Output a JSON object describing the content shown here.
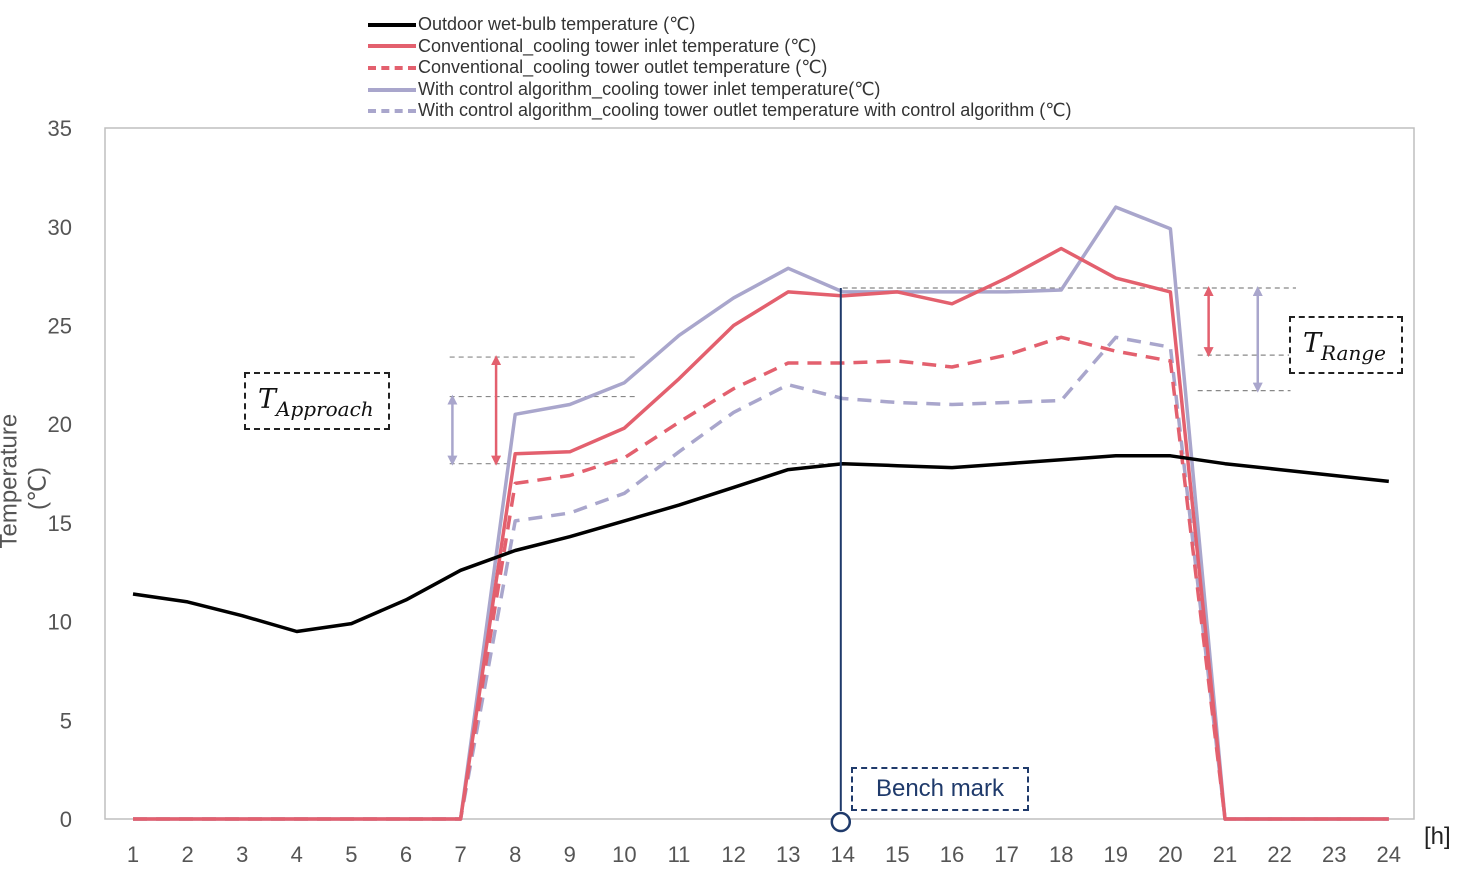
{
  "chart_data": {
    "type": "line",
    "title": "",
    "xlabel": "",
    "x_unit": "[h]",
    "ylabel": "Temperature (℃)",
    "xlim": [
      1,
      24
    ],
    "ylim": [
      0,
      35
    ],
    "x": [
      1,
      2,
      3,
      4,
      5,
      6,
      7,
      8,
      9,
      10,
      11,
      12,
      13,
      14,
      15,
      16,
      17,
      18,
      19,
      20,
      21,
      22,
      23,
      24
    ],
    "y_ticks": [
      0,
      5,
      10,
      15,
      20,
      25,
      30,
      35
    ],
    "x_ticks": [
      1,
      2,
      3,
      4,
      5,
      6,
      7,
      8,
      9,
      10,
      11,
      12,
      13,
      14,
      15,
      16,
      17,
      18,
      19,
      20,
      21,
      22,
      23,
      24
    ],
    "legend_position": "top",
    "series": [
      {
        "name": "Outdoor wet-bulb temperature (℃)",
        "color": "#000000",
        "style": "solid",
        "values": [
          11.4,
          11.0,
          10.3,
          9.5,
          9.9,
          11.1,
          12.6,
          13.6,
          14.3,
          15.1,
          15.9,
          16.8,
          17.7,
          18.0,
          17.9,
          17.8,
          18.0,
          18.2,
          18.4,
          18.4,
          18.0,
          17.7,
          17.4,
          17.1
        ]
      },
      {
        "name": "Conventional_cooling tower inlet temperature (℃)",
        "color": "#e3606e",
        "style": "solid",
        "values": [
          0,
          0,
          0,
          0,
          0,
          0,
          0,
          18.5,
          18.6,
          19.8,
          22.3,
          25.0,
          26.7,
          26.5,
          26.7,
          26.1,
          27.4,
          28.9,
          27.4,
          26.7,
          0,
          0,
          0,
          0
        ]
      },
      {
        "name": "Conventional_cooling tower outlet temperature (℃)",
        "color": "#e3606e",
        "style": "dashed",
        "values": [
          0,
          0,
          0,
          0,
          0,
          0,
          0,
          17.0,
          17.4,
          18.3,
          20.1,
          21.8,
          23.1,
          23.1,
          23.2,
          22.9,
          23.5,
          24.4,
          23.7,
          23.2,
          0,
          0,
          0,
          0
        ]
      },
      {
        "name": "With control algorithm_cooling tower inlet temperature(℃)",
        "color": "#a9a6cc",
        "style": "solid",
        "values": [
          0,
          0,
          0,
          0,
          0,
          0,
          0,
          20.5,
          21.0,
          22.1,
          24.5,
          26.4,
          27.9,
          26.7,
          26.7,
          26.7,
          26.7,
          26.8,
          31.0,
          29.9,
          0,
          0,
          0,
          0
        ]
      },
      {
        "name": "With control algorithm_cooling tower outlet temperature with control algorithm (℃)",
        "color": "#a9a6cc",
        "style": "dashed",
        "values": [
          0,
          0,
          0,
          0,
          0,
          0,
          0,
          15.1,
          15.5,
          16.5,
          18.6,
          20.6,
          22.0,
          21.3,
          21.1,
          21.0,
          21.1,
          21.2,
          24.4,
          23.9,
          0,
          0,
          0,
          0
        ]
      }
    ],
    "annotations": {
      "approach_label": "T",
      "approach_sub": "Approach",
      "range_label": "T",
      "range_sub": "Range",
      "bench_mark": "Bench mark",
      "bench_mark_x": 14
    }
  }
}
